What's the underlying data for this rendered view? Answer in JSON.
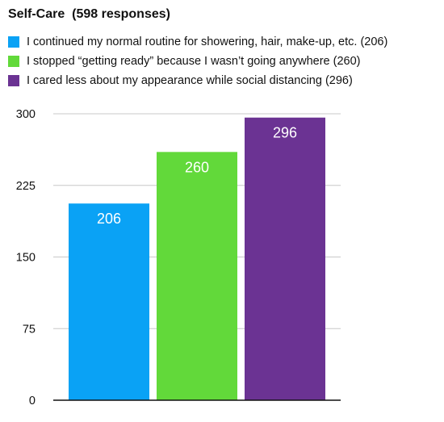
{
  "chart_data": {
    "type": "bar",
    "title": "Self-Care  (598 responses)",
    "categories": [
      "I continued my normal routine for showering, hair, make-up, etc. (206)",
      "I stopped “getting ready” because I wasn’t going anywhere (260)",
      "I cared less about my appearance while social distancing (296)"
    ],
    "values": [
      206,
      260,
      296
    ],
    "data_labels": [
      "206",
      "260",
      "296"
    ],
    "colors": [
      "#0aa2f5",
      "#62d93a",
      "#6b3393"
    ],
    "ylim": [
      0,
      300
    ],
    "yticks": [
      0,
      75,
      150,
      225,
      300
    ],
    "ytick_labels": [
      "0",
      "75",
      "150",
      "225",
      "300"
    ],
    "grid": true,
    "legend_position": "top-left",
    "xlabel": "",
    "ylabel": ""
  }
}
